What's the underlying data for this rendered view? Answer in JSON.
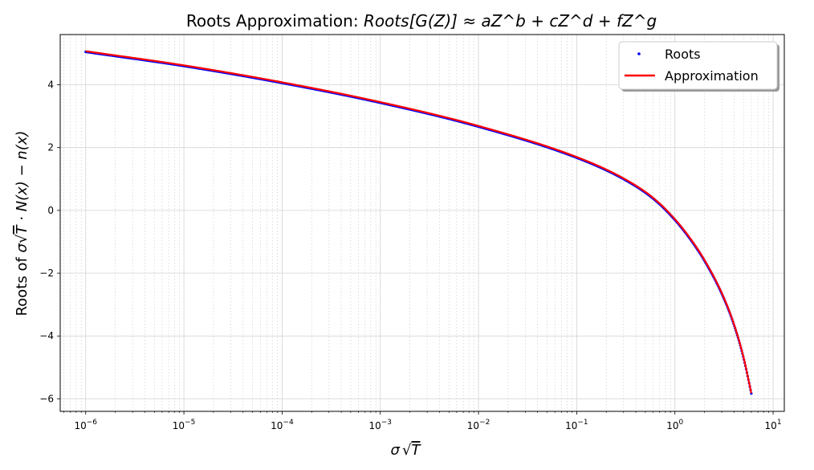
{
  "chart_data": {
    "type": "line",
    "title": {
      "prefix": "Roots Approximation: ",
      "formula_lhs": "Roots[G(Z)]",
      "approx": " ≈ ",
      "formula_rhs": "aZ^b + cZ^d + fZ^g"
    },
    "xlabel": {
      "sigma": "σ",
      "t": "T"
    },
    "ylabel": {
      "prefix": "Roots of ",
      "sigma": "σ",
      "t": "T",
      "rest": " · N(x) − n(x)"
    },
    "xscale": "log",
    "xlim": [
      5.5e-07,
      13
    ],
    "ylim": [
      -6.4,
      5.6
    ],
    "xticks": [
      {
        "base": "10",
        "exp": "−6",
        "value": 1e-06
      },
      {
        "base": "10",
        "exp": "−5",
        "value": 1e-05
      },
      {
        "base": "10",
        "exp": "−4",
        "value": 0.0001
      },
      {
        "base": "10",
        "exp": "−3",
        "value": 0.001
      },
      {
        "base": "10",
        "exp": "−2",
        "value": 0.01
      },
      {
        "base": "10",
        "exp": "−1",
        "value": 0.1
      },
      {
        "base": "10",
        "exp": "0",
        "value": 1
      },
      {
        "base": "10",
        "exp": "1",
        "value": 10
      }
    ],
    "yticks": [
      {
        "label": "−6",
        "value": -6
      },
      {
        "label": "−4",
        "value": -4
      },
      {
        "label": "−2",
        "value": -2
      },
      {
        "label": "0",
        "value": 0
      },
      {
        "label": "2",
        "value": 2
      },
      {
        "label": "4",
        "value": 4
      }
    ],
    "grid": true,
    "minor_grid": true,
    "legend_position": "top-right",
    "series": [
      {
        "name": "Roots",
        "kind": "scatter",
        "color": "#0000ff",
        "x": [
          1e-06,
          1e-05,
          0.0001,
          0.001,
          0.01,
          0.1,
          0.3,
          0.6,
          1,
          1.5,
          2,
          3,
          4,
          5,
          6
        ],
        "y": [
          5.05,
          4.6,
          4.06,
          3.43,
          2.67,
          1.68,
          1.0,
          0.38,
          -0.3,
          -1.0,
          -1.6,
          -2.65,
          -3.65,
          -4.7,
          -5.83
        ]
      },
      {
        "name": "Approximation",
        "kind": "line",
        "color": "#ff0000",
        "x": [
          1e-06,
          1e-05,
          0.0001,
          0.001,
          0.01,
          0.1,
          0.3,
          0.6,
          1,
          1.5,
          2,
          3,
          4,
          5,
          6
        ],
        "y": [
          5.07,
          4.62,
          4.08,
          3.45,
          2.69,
          1.7,
          1.02,
          0.4,
          -0.28,
          -0.98,
          -1.58,
          -2.63,
          -3.63,
          -4.68,
          -5.82
        ]
      }
    ]
  }
}
